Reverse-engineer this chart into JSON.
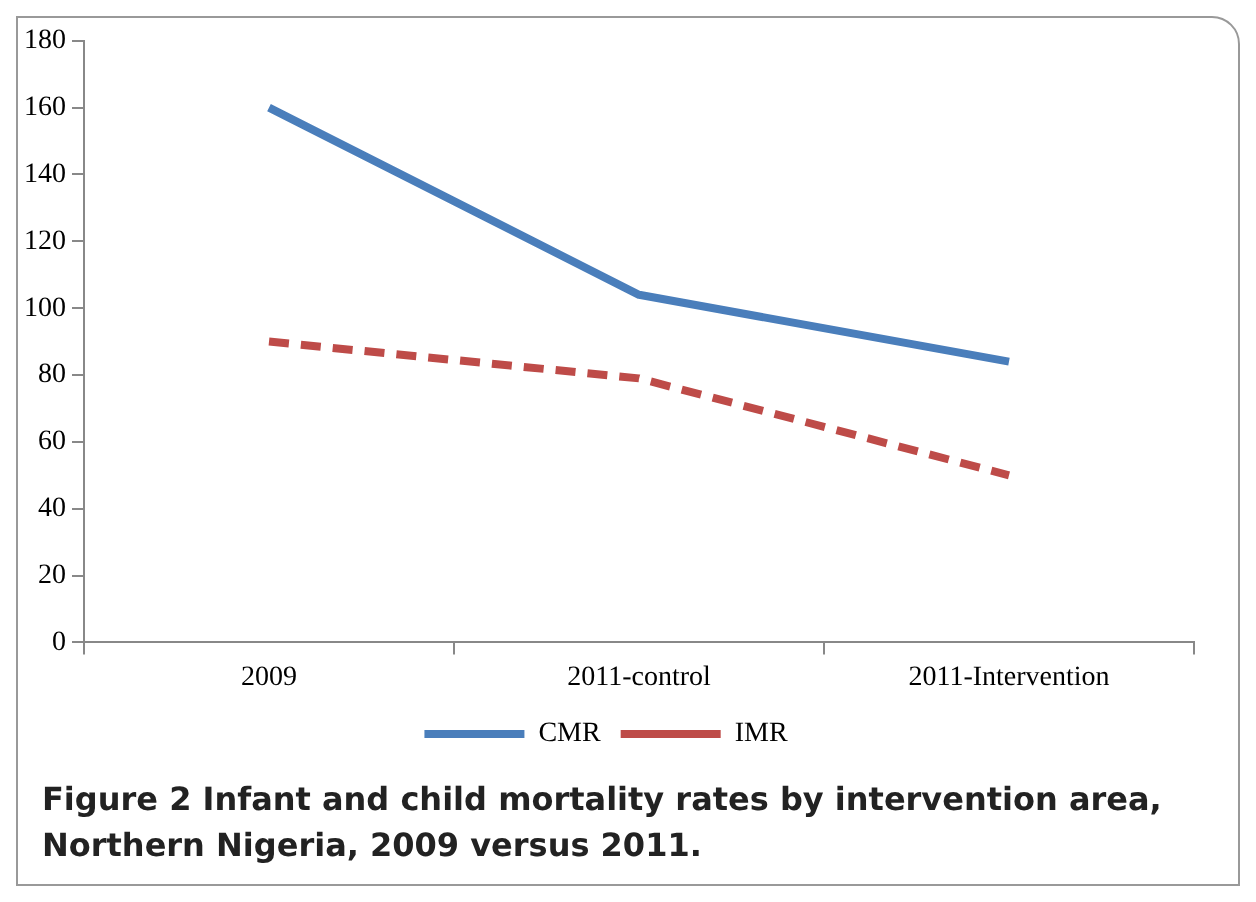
{
  "chart_data": {
    "type": "line",
    "categories": [
      "2009",
      "2011-control",
      "2011-Intervention"
    ],
    "series": [
      {
        "name": "CMR",
        "color": "#4a7ebb",
        "values": [
          160,
          104,
          84
        ],
        "line_style": "solid"
      },
      {
        "name": "IMR",
        "color": "#be4b48",
        "values": [
          90,
          79,
          50
        ],
        "line_style": "dashed"
      }
    ],
    "ylim": [
      0,
      180
    ],
    "yticks": [
      0,
      20,
      40,
      60,
      80,
      100,
      120,
      140,
      160,
      180
    ],
    "grid": false,
    "legend": "bottom",
    "marker": "none",
    "annotations": [
      "Figure 2 Infant and child mortality rates by intervention area, Northern Nigeria, 2009 versus 2011."
    ]
  }
}
